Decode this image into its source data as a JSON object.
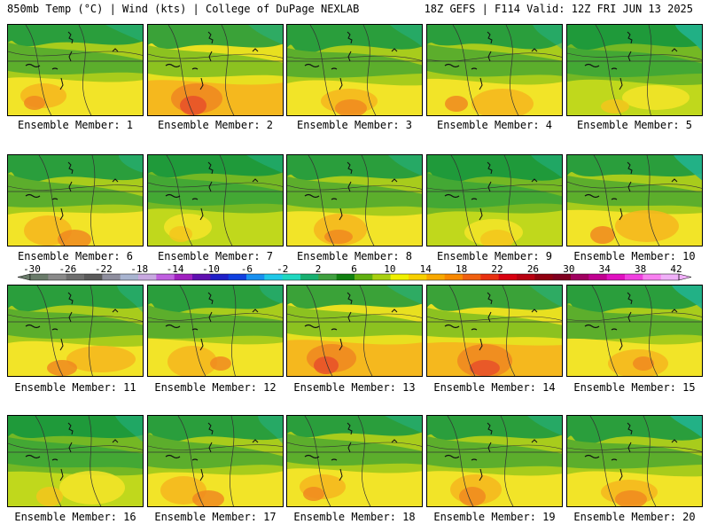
{
  "header": {
    "left": "850mb Temp (°C) | Wind (kts) | College of DuPage NEXLAB",
    "right": "18Z GEFS | F114 Valid: 12Z FRI JUN 13 2025"
  },
  "members": [
    {
      "label": "Ensemble Member: 1",
      "warmth": 1
    },
    {
      "label": "Ensemble Member: 2",
      "warmth": 2
    },
    {
      "label": "Ensemble Member: 3",
      "warmth": 1
    },
    {
      "label": "Ensemble Member: 4",
      "warmth": 1
    },
    {
      "label": "Ensemble Member: 5",
      "warmth": 0
    },
    {
      "label": "Ensemble Member: 6",
      "warmth": 1
    },
    {
      "label": "Ensemble Member: 7",
      "warmth": 0
    },
    {
      "label": "Ensemble Member: 8",
      "warmth": 1
    },
    {
      "label": "Ensemble Member: 9",
      "warmth": 0
    },
    {
      "label": "Ensemble Member: 10",
      "warmth": 1
    },
    {
      "label": "Ensemble Member: 11",
      "warmth": 1
    },
    {
      "label": "Ensemble Member: 12",
      "warmth": 1
    },
    {
      "label": "Ensemble Member: 13",
      "warmth": 2
    },
    {
      "label": "Ensemble Member: 14",
      "warmth": 2
    },
    {
      "label": "Ensemble Member: 15",
      "warmth": 1
    },
    {
      "label": "Ensemble Member: 16",
      "warmth": 0
    },
    {
      "label": "Ensemble Member: 17",
      "warmth": 1
    },
    {
      "label": "Ensemble Member: 18",
      "warmth": 1
    },
    {
      "label": "Ensemble Member: 19",
      "warmth": 1
    },
    {
      "label": "Ensemble Member: 20",
      "warmth": 1
    }
  ],
  "colorbar": {
    "ticks": [
      "-30",
      "-26",
      "-22",
      "-18",
      "-14",
      "-10",
      "-6",
      "-2",
      "2",
      "6",
      "10",
      "14",
      "18",
      "22",
      "26",
      "30",
      "34",
      "38",
      "42"
    ],
    "colors": [
      "#6a7b6a",
      "#8a8a8a",
      "#6e6e6e",
      "#5a5a5a",
      "#8e8e9e",
      "#a8b4d0",
      "#c8a8e0",
      "#c060e0",
      "#a020c0",
      "#6010b0",
      "#2020c8",
      "#1040e0",
      "#1890f0",
      "#20c8e8",
      "#20d8c0",
      "#18b070",
      "#40a040",
      "#108010",
      "#60b010",
      "#a8d010",
      "#f0f000",
      "#f8d000",
      "#f8a800",
      "#f88800",
      "#f06010",
      "#e83010",
      "#d80010",
      "#b80010",
      "#900010",
      "#800020",
      "#a00060",
      "#c00090",
      "#e010c0",
      "#f040e0",
      "#f880f0",
      "#f0b0f8"
    ]
  }
}
